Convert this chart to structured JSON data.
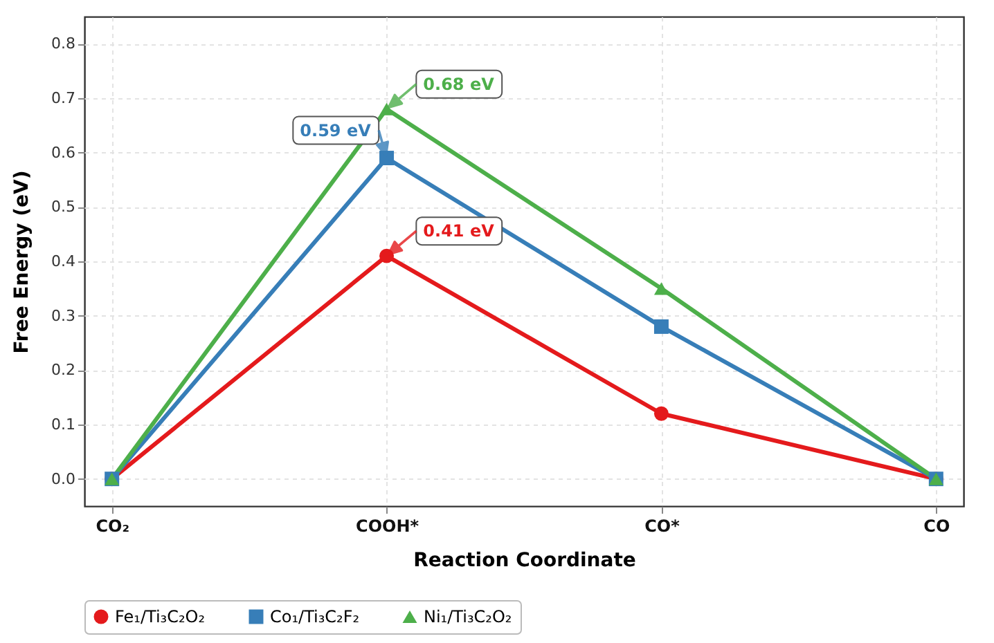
{
  "chart_data": {
    "type": "line",
    "xlabel": "Reaction Coordinate",
    "ylabel": "Free Energy (eV)",
    "categories": [
      "CO₂",
      "COOH*",
      "CO*",
      "CO"
    ],
    "series": [
      {
        "name": "Fe₁/Ti₃C₂O₂",
        "color": "#e41a1c",
        "marker": "circle",
        "values": [
          0,
          0.41,
          0.12,
          0
        ]
      },
      {
        "name": "Co₁/Ti₃C₂F₂",
        "color": "#377eb8",
        "marker": "square",
        "values": [
          0,
          0.59,
          0.28,
          0
        ]
      },
      {
        "name": "Ni₁/Ti₃C₂O₂",
        "color": "#4daf4a",
        "marker": "triangle",
        "values": [
          0,
          0.68,
          0.35,
          0
        ]
      }
    ],
    "ylim": [
      -0.05,
      0.85
    ],
    "yticks": [
      {
        "value": 0,
        "label": "0.0"
      },
      {
        "value": 0.1,
        "label": "0.1"
      },
      {
        "value": 0.2,
        "label": "0.2"
      },
      {
        "value": 0.3,
        "label": "0.3"
      },
      {
        "value": 0.4,
        "label": "0.4"
      },
      {
        "value": 0.5,
        "label": "0.5"
      },
      {
        "value": 0.6,
        "label": "0.6"
      },
      {
        "value": 0.7,
        "label": "0.7"
      },
      {
        "value": 0.8,
        "label": "0.8"
      }
    ],
    "grid": true,
    "legend": "bottom",
    "annotations": [
      {
        "text": "0.41 eV",
        "x": "COOH*",
        "y": 0.41
      },
      {
        "text": "0.59 eV",
        "x": "COOH*",
        "y": 0.59
      },
      {
        "text": "0.68 eV",
        "x": "COOH*",
        "y": 0.68
      }
    ]
  }
}
